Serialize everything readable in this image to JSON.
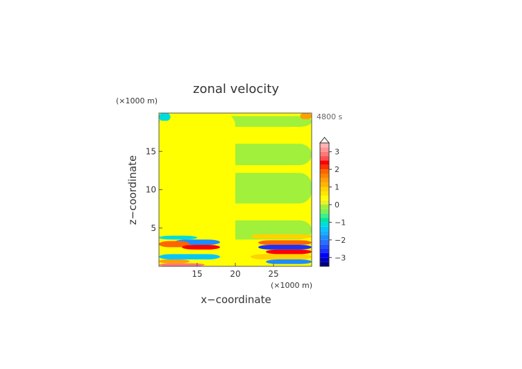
{
  "chart_data": {
    "type": "heatmap",
    "title": "zonal velocity",
    "xlabel": "x−coordinate",
    "ylabel": "z−coordinate",
    "x_unit": "(×1000 m)",
    "y_unit": "(×1000 m)",
    "time_label": "4800 s",
    "xlim": [
      10,
      30
    ],
    "ylim": [
      0,
      20
    ],
    "x_ticks": [
      15,
      20,
      25
    ],
    "y_ticks": [
      5,
      10,
      15
    ],
    "colorbar": {
      "levels": [
        {
          "min": -3.5,
          "max": -3.25,
          "color": "#00007f"
        },
        {
          "min": -3.25,
          "max": -3.0,
          "color": "#0000bf"
        },
        {
          "min": -3.0,
          "max": -2.75,
          "color": "#0000ff"
        },
        {
          "min": -2.75,
          "max": -2.5,
          "color": "#1a32ff"
        },
        {
          "min": -2.5,
          "max": -2.25,
          "color": "#2050ff"
        },
        {
          "min": -2.25,
          "max": -2.0,
          "color": "#2a6eff"
        },
        {
          "min": -2.0,
          "max": -1.75,
          "color": "#1e8cff"
        },
        {
          "min": -1.75,
          "max": -1.5,
          "color": "#1eaaff"
        },
        {
          "min": -1.5,
          "max": -1.25,
          "color": "#00c8ff"
        },
        {
          "min": -1.25,
          "max": -1.0,
          "color": "#00dcdc"
        },
        {
          "min": -1.0,
          "max": -0.75,
          "color": "#00e6a0"
        },
        {
          "min": -0.75,
          "max": -0.5,
          "color": "#3cf08c"
        },
        {
          "min": -0.5,
          "max": -0.25,
          "color": "#7cf050"
        },
        {
          "min": -0.25,
          "max": 0.0,
          "color": "#a0f03c"
        },
        {
          "min": 0.0,
          "max": 0.25,
          "color": "#f0f028"
        },
        {
          "min": 0.25,
          "max": 0.5,
          "color": "#ffff00"
        },
        {
          "min": 0.5,
          "max": 0.75,
          "color": "#ffe600"
        },
        {
          "min": 0.75,
          "max": 1.0,
          "color": "#ffd200"
        },
        {
          "min": 1.0,
          "max": 1.25,
          "color": "#ffb400"
        },
        {
          "min": 1.25,
          "max": 1.5,
          "color": "#ffa000"
        },
        {
          "min": 1.5,
          "max": 1.75,
          "color": "#ff8200"
        },
        {
          "min": 1.75,
          "max": 2.0,
          "color": "#ff6400"
        },
        {
          "min": 2.0,
          "max": 2.25,
          "color": "#ff3200"
        },
        {
          "min": 2.25,
          "max": 2.5,
          "color": "#ff0000"
        },
        {
          "min": 2.5,
          "max": 2.75,
          "color": "#ff5050"
        },
        {
          "min": 2.75,
          "max": 3.0,
          "color": "#ff7878"
        },
        {
          "min": 3.0,
          "max": 3.25,
          "color": "#ff9696"
        },
        {
          "min": 3.25,
          "max": 3.5,
          "color": "#ffb4b4"
        }
      ],
      "ticks": [
        -3,
        -2,
        -1,
        0,
        1,
        2,
        3
      ],
      "extend": "max"
    },
    "regions": [
      {
        "x": [
          10,
          30
        ],
        "y": [
          0,
          20
        ],
        "value": 0.3
      },
      {
        "x": [
          10,
          30
        ],
        "y": [
          18.2,
          19.6
        ],
        "value": -0.1
      },
      {
        "x": [
          10,
          30
        ],
        "y": [
          13.2,
          16.0
        ],
        "value": -0.1
      },
      {
        "x": [
          10,
          30
        ],
        "y": [
          8.2,
          12.2
        ],
        "value": -0.1
      },
      {
        "x": [
          10,
          30
        ],
        "y": [
          3.5,
          6.0
        ],
        "value": -0.1
      },
      {
        "x": [
          10,
          20
        ],
        "y": [
          0,
          20
        ],
        "value": 0.3
      },
      {
        "x": [
          10,
          15
        ],
        "y": [
          3.5,
          4.0
        ],
        "value": -1.1
      },
      {
        "x": [
          12,
          18
        ],
        "y": [
          2.8,
          3.5
        ],
        "value": -1.9
      },
      {
        "x": [
          10,
          14
        ],
        "y": [
          2.5,
          3.3
        ],
        "value": 1.9
      },
      {
        "x": [
          13,
          18
        ],
        "y": [
          2.2,
          2.8
        ],
        "value": 2.4
      },
      {
        "x": [
          10,
          16
        ],
        "y": [
          1.6,
          2.2
        ],
        "value": 0.3
      },
      {
        "x": [
          10,
          18
        ],
        "y": [
          0.9,
          1.6
        ],
        "value": -1.3
      },
      {
        "x": [
          10,
          14
        ],
        "y": [
          0.4,
          0.9
        ],
        "value": 1.4
      },
      {
        "x": [
          10,
          16
        ],
        "y": [
          0,
          0.4
        ],
        "value": 2.9
      },
      {
        "x": [
          22,
          30
        ],
        "y": [
          3.6,
          4.2
        ],
        "value": 0.9
      },
      {
        "x": [
          23,
          30
        ],
        "y": [
          2.8,
          3.4
        ],
        "value": 1.9
      },
      {
        "x": [
          23,
          30
        ],
        "y": [
          2.2,
          2.8
        ],
        "value": -2.6
      },
      {
        "x": [
          24,
          30
        ],
        "y": [
          1.6,
          2.2
        ],
        "value": 2.4
      },
      {
        "x": [
          22,
          30
        ],
        "y": [
          0.9,
          1.6
        ],
        "value": 0.9
      },
      {
        "x": [
          24,
          30
        ],
        "y": [
          0.3,
          0.9
        ],
        "value": -1.9
      },
      {
        "x": [
          10,
          11.5
        ],
        "y": [
          19.0,
          20
        ],
        "value": -1.1
      },
      {
        "x": [
          28.5,
          30
        ],
        "y": [
          19.2,
          20
        ],
        "value": 1.4
      }
    ]
  }
}
